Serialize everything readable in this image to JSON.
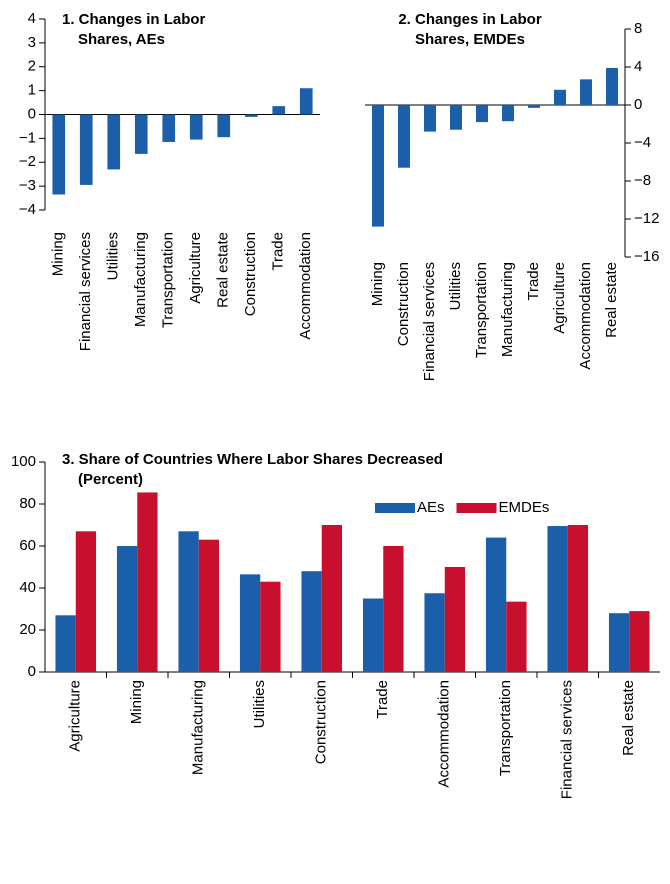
{
  "chart_data": [
    {
      "type": "bar",
      "title": "1. Changes in Labor Shares, AEs",
      "categories": [
        "Mining",
        "Financial services",
        "Utilities",
        "Manufacturing",
        "Transportation",
        "Agriculture",
        "Real estate",
        "Construction",
        "Trade",
        "Accommodation"
      ],
      "values": [
        -3.35,
        -2.95,
        -2.3,
        -1.65,
        -1.15,
        -1.05,
        -0.95,
        -0.1,
        0.35,
        1.1
      ],
      "color": "#1b5faa",
      "ylim": [
        -4,
        4
      ],
      "yticks": [
        {
          "value": -4,
          "label": "−4"
        },
        {
          "value": -3,
          "label": "−3"
        },
        {
          "value": -2,
          "label": "−2"
        },
        {
          "value": -1,
          "label": "−1"
        },
        0,
        1,
        2,
        3,
        4
      ],
      "y_axis_side": "left",
      "grid": false
    },
    {
      "type": "bar",
      "title": "2. Changes in Labor Shares, EMDEs",
      "categories": [
        "Mining",
        "Construction",
        "Financial services",
        "Utilities",
        "Transportation",
        "Manufacturing",
        "Trade",
        "Agriculture",
        "Accommodation",
        "Real estate"
      ],
      "values": [
        -12.8,
        -6.6,
        -2.8,
        -2.6,
        -1.8,
        -1.7,
        -0.3,
        1.6,
        2.7,
        3.9
      ],
      "color": "#1b5faa",
      "ylim": [
        -16,
        8
      ],
      "yticks": [
        {
          "value": -16,
          "label": "−16"
        },
        {
          "value": -12,
          "label": "−12"
        },
        {
          "value": -8,
          "label": "−8"
        },
        {
          "value": -4,
          "label": "−4"
        },
        0,
        4,
        8
      ],
      "y_axis_side": "right",
      "grid": false
    },
    {
      "type": "bar",
      "title": "3. Share of Countries Where Labor Shares Decreased",
      "subtitle": "(Percent)",
      "categories": [
        "Agriculture",
        "Mining",
        "Manufacturing",
        "Utilities",
        "Construction",
        "Trade",
        "Accommodation",
        "Transportation",
        "Financial services",
        "Real estate"
      ],
      "series": [
        {
          "name": "AEs",
          "color": "#1b5faa",
          "values": [
            27,
            60,
            67,
            46.5,
            48,
            35,
            37.5,
            64,
            69.5,
            28
          ]
        },
        {
          "name": "EMDEs",
          "color": "#c8102e",
          "values": [
            67,
            85.5,
            63,
            43,
            70,
            60,
            50,
            33.5,
            70,
            29
          ]
        }
      ],
      "ylim": [
        0,
        100
      ],
      "yticks": [
        0,
        20,
        40,
        60,
        80,
        100
      ],
      "y_axis_side": "left",
      "legend": "top-right",
      "grid": false
    }
  ]
}
